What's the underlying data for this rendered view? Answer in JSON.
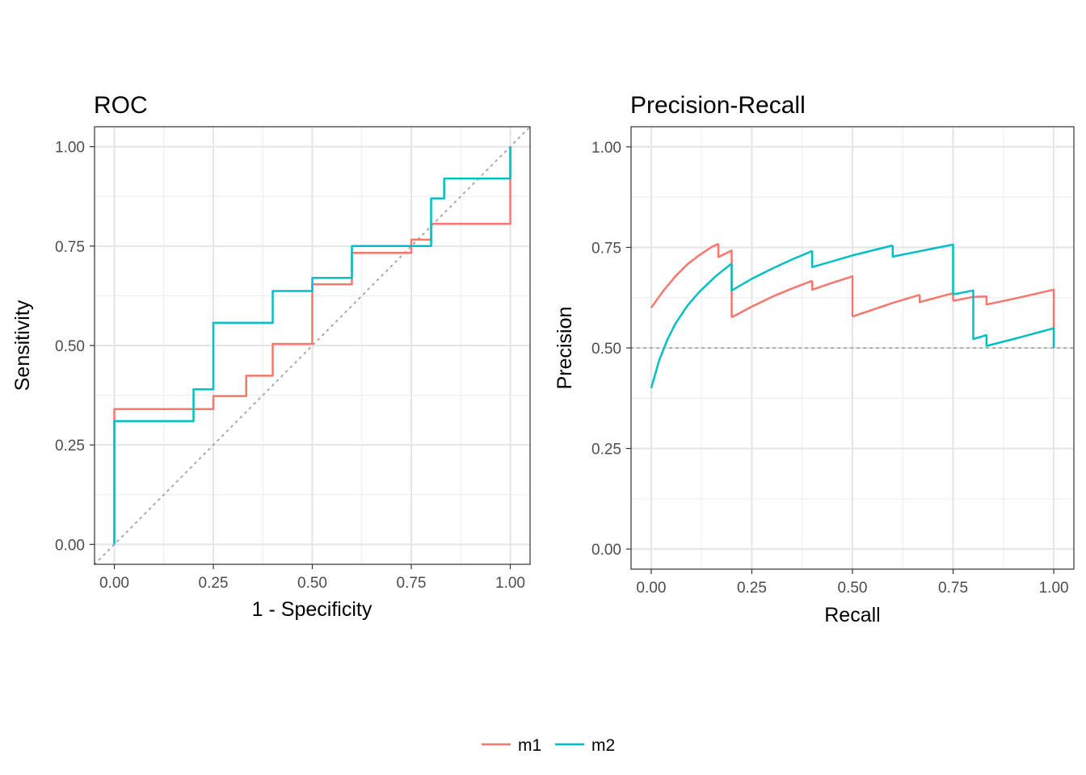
{
  "chart_data": [
    {
      "type": "line",
      "title": "ROC",
      "xlabel": "1 - Specificity",
      "ylabel": "Sensitivity",
      "xlim": [
        -0.05,
        1.05
      ],
      "ylim": [
        -0.05,
        1.05
      ],
      "xticks": [
        "0.00",
        "0.25",
        "0.50",
        "0.75",
        "1.00"
      ],
      "yticks": [
        "0.00",
        "0.25",
        "0.50",
        "0.75",
        "1.00"
      ],
      "grid": true,
      "reference_line": {
        "style": "dotted",
        "color": "#aaaaaa",
        "x": [
          -0.05,
          1.05
        ],
        "y": [
          -0.05,
          1.05
        ]
      },
      "series": [
        {
          "name": "m1",
          "color": "#F8766D",
          "x": [
            0,
            0,
            0.25,
            0.25,
            0.333,
            0.333,
            0.4,
            0.4,
            0.5,
            0.5,
            0.6,
            0.6,
            0.75,
            0.75,
            0.8,
            0.8,
            1,
            1
          ],
          "y": [
            0,
            0.34,
            0.34,
            0.373,
            0.373,
            0.424,
            0.424,
            0.504,
            0.504,
            0.654,
            0.654,
            0.733,
            0.733,
            0.766,
            0.766,
            0.806,
            0.806,
            1
          ]
        },
        {
          "name": "m2",
          "color": "#00BFC4",
          "x": [
            0,
            0,
            0.2,
            0.2,
            0.25,
            0.25,
            0.4,
            0.4,
            0.5,
            0.5,
            0.6,
            0.6,
            0.8,
            0.8,
            0.833,
            0.833,
            1,
            1
          ],
          "y": [
            0,
            0.31,
            0.31,
            0.39,
            0.39,
            0.557,
            0.557,
            0.637,
            0.637,
            0.67,
            0.67,
            0.75,
            0.75,
            0.87,
            0.87,
            0.92,
            0.92,
            1
          ]
        }
      ]
    },
    {
      "type": "line",
      "title": "Precision-Recall",
      "xlabel": "Recall",
      "ylabel": "Precision",
      "xlim": [
        -0.05,
        1.05
      ],
      "ylim": [
        -0.05,
        1.05
      ],
      "xticks": [
        "0.00",
        "0.25",
        "0.50",
        "0.75",
        "1.00"
      ],
      "yticks": [
        "0.00",
        "0.25",
        "0.50",
        "0.75",
        "1.00"
      ],
      "grid": true,
      "reference_line": {
        "style": "dotted",
        "color": "#aaaaaa",
        "x": [
          -0.05,
          1.05
        ],
        "y": [
          0.5,
          0.5
        ]
      },
      "series": [
        {
          "name": "m1",
          "color": "#F8766D",
          "segments": [
            {
              "x": [
                0.0,
                0.03,
                0.06,
                0.09,
                0.12,
                0.15,
                0.167
              ],
              "y": [
                0.6,
                0.642,
                0.678,
                0.708,
                0.731,
                0.751,
                0.759
              ]
            },
            {
              "x": [
                0.167,
                0.167,
                0.2,
                0.2
              ],
              "y": [
                0.759,
                0.726,
                0.742,
                0.576
              ]
            },
            {
              "x": [
                0.2,
                0.25,
                0.3,
                0.35,
                0.4
              ],
              "y": [
                0.576,
                0.603,
                0.627,
                0.648,
                0.667
              ]
            },
            {
              "x": [
                0.4,
                0.4,
                0.45,
                0.5,
                0.5
              ],
              "y": [
                0.667,
                0.645,
                0.662,
                0.678,
                0.578
              ]
            },
            {
              "x": [
                0.5,
                0.55,
                0.6,
                0.667
              ],
              "y": [
                0.578,
                0.595,
                0.612,
                0.632
              ]
            },
            {
              "x": [
                0.667,
                0.667,
                0.75,
                0.75
              ],
              "y": [
                0.632,
                0.614,
                0.636,
                0.617
              ]
            },
            {
              "x": [
                0.75,
                0.8,
                0.833,
                0.833,
                0.9,
                1.0,
                1.0
              ],
              "y": [
                0.617,
                0.627,
                0.628,
                0.608,
                0.622,
                0.645,
                0.5
              ]
            }
          ]
        },
        {
          "name": "m2",
          "color": "#00BFC4",
          "segments": [
            {
              "x": [
                0.0,
                0.02,
                0.04,
                0.06,
                0.09,
                0.12,
                0.16,
                0.2
              ],
              "y": [
                0.4,
                0.47,
                0.52,
                0.56,
                0.605,
                0.64,
                0.678,
                0.71
              ]
            },
            {
              "x": [
                0.2,
                0.2,
                0.25,
                0.3,
                0.35,
                0.4
              ],
              "y": [
                0.71,
                0.643,
                0.672,
                0.697,
                0.72,
                0.741
              ]
            },
            {
              "x": [
                0.4,
                0.4,
                0.5,
                0.6
              ],
              "y": [
                0.741,
                0.701,
                0.73,
                0.755
              ]
            },
            {
              "x": [
                0.6,
                0.6,
                0.7,
                0.75,
                0.75
              ],
              "y": [
                0.755,
                0.727,
                0.747,
                0.757,
                0.633
              ]
            },
            {
              "x": [
                0.75,
                0.8,
                0.8,
                0.833,
                0.833,
                0.9,
                1.0,
                1.0
              ],
              "y": [
                0.633,
                0.643,
                0.522,
                0.532,
                0.505,
                0.522,
                0.549,
                0.5
              ]
            }
          ]
        }
      ]
    }
  ],
  "legend": {
    "position": "bottom",
    "items": [
      {
        "name": "m1",
        "color": "#F8766D"
      },
      {
        "name": "m2",
        "color": "#00BFC4"
      }
    ]
  }
}
